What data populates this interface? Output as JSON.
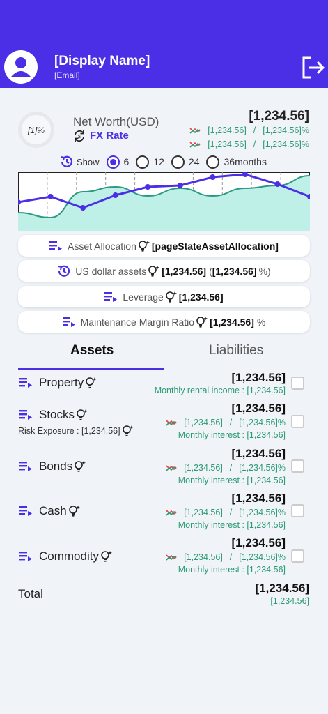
{
  "header": {
    "display_name": "[Display Name]",
    "email": "[Email]",
    "avatar_icon": "avatar-icon",
    "logout_icon": "logout-icon",
    "background": "#4a2fe6"
  },
  "summary": {
    "ring_text": "[1]%",
    "net_worth_label": "Net Worth(USD)",
    "fx_rate_label": "FX Rate",
    "net_worth_value": "[1,234.56]",
    "change_rows": [
      {
        "value": "[1,234.56]",
        "sep": "/",
        "pct": "[1,234.56]%"
      },
      {
        "value": "[1,234.56]",
        "sep": "/",
        "pct": "[1,234.56]%"
      }
    ]
  },
  "period": {
    "show_label": "Show",
    "options": [
      "6",
      "12",
      "24",
      "36"
    ],
    "selected": "6",
    "suffix": "months"
  },
  "chart_data": {
    "type": "line",
    "series": [
      {
        "values": [
          290,
          282,
          298,
          280,
          268,
          266,
          254,
          250,
          264,
          282
        ]
      },
      {
        "values": [
          305,
          312,
          275,
          268,
          281,
          270,
          281,
          270,
          266,
          252
        ]
      }
    ],
    "colors": [
      "#4a2fe6",
      "#2a9a84"
    ],
    "fill": "#bff0e8",
    "grid": "dashed-vertical"
  },
  "pills": {
    "asset_allocation_label": "Asset Allocation",
    "asset_allocation_value": "[pageStateAssetAllocation]",
    "usd_assets_label": "US dollar assets",
    "usd_assets_value": "[1,234.56]",
    "usd_assets_open": "(",
    "usd_assets_pct": "[1,234.56]",
    "usd_assets_close": "%)",
    "leverage_label": "Leverage",
    "leverage_value": "[1,234.56]",
    "margin_label": "Maintenance Margin Ratio",
    "margin_value": "[1,234.56]",
    "margin_unit": "%"
  },
  "tabs": {
    "assets": "Assets",
    "liabilities": "Liabilities"
  },
  "assets": {
    "property": {
      "name": "Property",
      "value": "[1,234.56]",
      "sub": "Monthly rental income : [1,234.56]"
    },
    "stocks": {
      "name": "Stocks",
      "risk": "Risk Exposure :  [1,234.56]",
      "value": "[1,234.56]",
      "change": "[1,234.56]",
      "sep": "/",
      "pct": "[1,234.56]%",
      "sub": "Monthly interest : [1,234.56]"
    },
    "bonds": {
      "name": "Bonds",
      "value": "[1,234.56]",
      "change": "[1,234.56]",
      "sep": "/",
      "pct": "[1,234.56]%",
      "sub": "Monthly interest : [1,234.56]"
    },
    "cash": {
      "name": "Cash",
      "value": "[1,234.56]",
      "change": "[1,234.56]",
      "sep": "/",
      "pct": "[1,234.56]%",
      "sub": "Monthly interest : [1,234.56]"
    },
    "commodity": {
      "name": "Commodity",
      "value": "[1,234.56]",
      "change": "[1,234.56]",
      "sep": "/",
      "pct": "[1,234.56]%",
      "sub": "Monthly interest : [1,234.56]"
    }
  },
  "total": {
    "label": "Total",
    "value": "[1,234.56]",
    "sub": "[1,234.56]"
  },
  "colors": {
    "accent": "#4a2fe6",
    "positive": "#2a9a72",
    "background": "#f0f3f8"
  }
}
